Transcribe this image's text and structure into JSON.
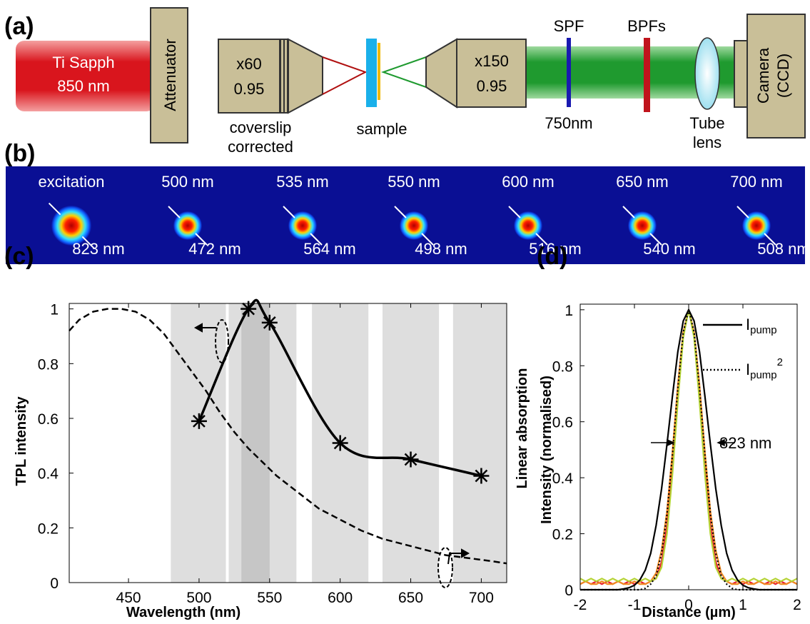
{
  "panel_a": {
    "label": "(a)",
    "laser": [
      "Ti Sapph",
      "850 nm"
    ],
    "attenuator": "Attenuator",
    "objective_1": [
      "x60",
      "0.95"
    ],
    "objective_1_note": [
      "coverslip",
      "corrected"
    ],
    "sample": "sample",
    "objective_2": [
      "x150",
      "0.95"
    ],
    "spf": "SPF",
    "spf_cutoff": "750nm",
    "bpf": "BPFs",
    "tube_lens": [
      "Tube",
      "lens"
    ],
    "camera": [
      "Camera",
      "(CCD)"
    ]
  },
  "panel_b": {
    "label": "(b)",
    "tiles": [
      {
        "wavelength": "excitation",
        "fwhm": "823 nm"
      },
      {
        "wavelength": "500 nm",
        "fwhm": "472 nm"
      },
      {
        "wavelength": "535 nm",
        "fwhm": "564 nm"
      },
      {
        "wavelength": "550 nm",
        "fwhm": "498 nm"
      },
      {
        "wavelength": "600 nm",
        "fwhm": "516 nm"
      },
      {
        "wavelength": "650 nm",
        "fwhm": "540 nm"
      },
      {
        "wavelength": "700 nm",
        "fwhm": "508 nm"
      }
    ]
  },
  "chart_data": [
    {
      "type": "line",
      "label": "(c)",
      "xlabel": "Wavelength (nm)",
      "ylabel": "TPL intensity",
      "y2label": "Linear absorption",
      "xlim": [
        408,
        718
      ],
      "xticks": [
        450,
        500,
        550,
        600,
        650,
        700
      ],
      "ylim": [
        0,
        1.02
      ],
      "yticks": [
        0,
        0.2,
        0.4,
        0.6,
        0.8,
        1
      ],
      "y2lim": [
        0,
        1.02
      ],
      "bands": [
        [
          480,
          519
        ],
        [
          521,
          569
        ],
        [
          580,
          620
        ],
        [
          630,
          670
        ],
        [
          680,
          720
        ]
      ],
      "dark_band": [
        530,
        550
      ],
      "series": [
        {
          "color": "#000000",
          "marker": "star",
          "smooth": true,
          "x": [
            500,
            535,
            550,
            600,
            650,
            700
          ],
          "values": [
            0.59,
            1.0,
            0.95,
            0.51,
            0.45,
            0.39
          ]
        },
        {
          "color": "#000000",
          "dash": "dashed",
          "axis": "y2",
          "x": [
            408,
            415,
            425,
            435,
            445,
            455,
            465,
            475,
            485,
            495,
            505,
            515,
            525,
            535,
            545,
            555,
            565,
            575,
            585,
            600,
            615,
            630,
            645,
            660,
            675,
            690,
            705,
            718
          ],
          "values": [
            0.92,
            0.96,
            0.99,
            1.0,
            1.0,
            0.99,
            0.96,
            0.91,
            0.84,
            0.77,
            0.7,
            0.62,
            0.55,
            0.49,
            0.44,
            0.39,
            0.35,
            0.31,
            0.27,
            0.23,
            0.19,
            0.16,
            0.14,
            0.12,
            0.1,
            0.09,
            0.08,
            0.07
          ]
        }
      ]
    },
    {
      "type": "line",
      "label": "(d)",
      "xlabel": "Distance (µm)",
      "ylabel": "Intensity (normalised)",
      "xlim": [
        -2,
        2
      ],
      "xticks": [
        -2,
        -1,
        0,
        1,
        2
      ],
      "ylim": [
        0,
        1.02
      ],
      "yticks": [
        0,
        0.2,
        0.4,
        0.6,
        0.8,
        1
      ],
      "x": [
        -2,
        -1.9,
        -1.8,
        -1.7,
        -1.6,
        -1.5,
        -1.4,
        -1.3,
        -1.2,
        -1.1,
        -1,
        -0.9,
        -0.8,
        -0.7,
        -0.6,
        -0.5,
        -0.4,
        -0.3,
        -0.2,
        -0.1,
        0,
        0.1,
        0.2,
        0.3,
        0.4,
        0.5,
        0.6,
        0.7,
        0.8,
        0.9,
        1,
        1.1,
        1.2,
        1.3,
        1.4,
        1.5,
        1.6,
        1.7,
        1.8,
        1.9,
        2
      ],
      "series": [
        {
          "color": "#e8202a",
          "values": [
            0.02,
            0.03,
            0.02,
            0.03,
            0.02,
            0.03,
            0.02,
            0.03,
            0.02,
            0.03,
            0.02,
            0.03,
            0.02,
            0.03,
            0.04,
            0.1,
            0.23,
            0.44,
            0.69,
            0.91,
            1,
            0.91,
            0.69,
            0.44,
            0.23,
            0.1,
            0.04,
            0.03,
            0.02,
            0.03,
            0.02,
            0.03,
            0.02,
            0.03,
            0.02,
            0.03,
            0.02,
            0.03,
            0.02,
            0.03,
            0.02
          ]
        },
        {
          "color": "#f08a24",
          "values": [
            0.02,
            0.03,
            0.02,
            0.02,
            0.03,
            0.02,
            0.02,
            0.03,
            0.02,
            0.02,
            0.03,
            0.02,
            0.02,
            0.03,
            0.06,
            0.14,
            0.28,
            0.49,
            0.73,
            0.92,
            1,
            0.92,
            0.73,
            0.49,
            0.28,
            0.14,
            0.06,
            0.03,
            0.02,
            0.02,
            0.03,
            0.02,
            0.02,
            0.03,
            0.02,
            0.02,
            0.03,
            0.02,
            0.02,
            0.03,
            0.02
          ]
        },
        {
          "color": "#b5d334",
          "values": [
            0.04,
            0.03,
            0.04,
            0.03,
            0.04,
            0.03,
            0.04,
            0.03,
            0.04,
            0.03,
            0.04,
            0.03,
            0.04,
            0.03,
            0.04,
            0.08,
            0.2,
            0.41,
            0.67,
            0.9,
            1,
            0.9,
            0.67,
            0.41,
            0.2,
            0.08,
            0.04,
            0.03,
            0.04,
            0.03,
            0.04,
            0.03,
            0.04,
            0.03,
            0.04,
            0.03,
            0.04,
            0.03,
            0.04,
            0.03,
            0.04
          ]
        },
        {
          "color": "#000000",
          "values": [
            0,
            0,
            0,
            0,
            0,
            0,
            0,
            0,
            0.003,
            0.007,
            0.016,
            0.035,
            0.07,
            0.13,
            0.23,
            0.36,
            0.52,
            0.69,
            0.85,
            0.96,
            1,
            0.96,
            0.85,
            0.69,
            0.52,
            0.36,
            0.23,
            0.13,
            0.07,
            0.035,
            0.016,
            0.007,
            0.003,
            0,
            0,
            0,
            0,
            0,
            0,
            0,
            0
          ]
        },
        {
          "color": "#000000",
          "dash": "dotted",
          "values": [
            0,
            0,
            0,
            0,
            0,
            0,
            0,
            0,
            0,
            0,
            0,
            0,
            0.005,
            0.02,
            0.05,
            0.13,
            0.27,
            0.48,
            0.72,
            0.92,
            1,
            0.92,
            0.72,
            0.48,
            0.27,
            0.13,
            0.05,
            0.02,
            0.005,
            0,
            0,
            0,
            0,
            0,
            0,
            0,
            0,
            0,
            0,
            0,
            0
          ]
        }
      ],
      "legend": [
        {
          "text": "I",
          "sub": "pump"
        },
        {
          "text": "I",
          "sub": "pump",
          "sup": "2"
        }
      ],
      "annotation": "823 nm"
    }
  ]
}
